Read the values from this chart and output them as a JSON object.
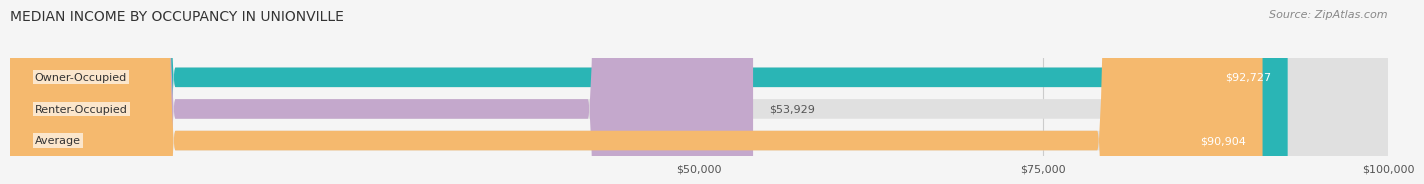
{
  "title": "MEDIAN INCOME BY OCCUPANCY IN UNIONVILLE",
  "source": "Source: ZipAtlas.com",
  "categories": [
    "Owner-Occupied",
    "Renter-Occupied",
    "Average"
  ],
  "values": [
    92727,
    53929,
    90904
  ],
  "labels": [
    "$92,727",
    "$53,929",
    "$90,904"
  ],
  "bar_colors": [
    "#2ab5b5",
    "#c4a8cc",
    "#f5b96e"
  ],
  "label_colors": [
    "#ffffff",
    "#555555",
    "#ffffff"
  ],
  "x_max": 100000,
  "x_ticks": [
    50000,
    75000,
    100000
  ],
  "x_tick_labels": [
    "$50,000",
    "$75,000",
    "$100,000"
  ],
  "background_color": "#f5f5f5",
  "bar_background_color": "#e0e0e0",
  "title_fontsize": 10,
  "source_fontsize": 8,
  "label_fontsize": 8,
  "tick_fontsize": 8,
  "category_fontsize": 8
}
